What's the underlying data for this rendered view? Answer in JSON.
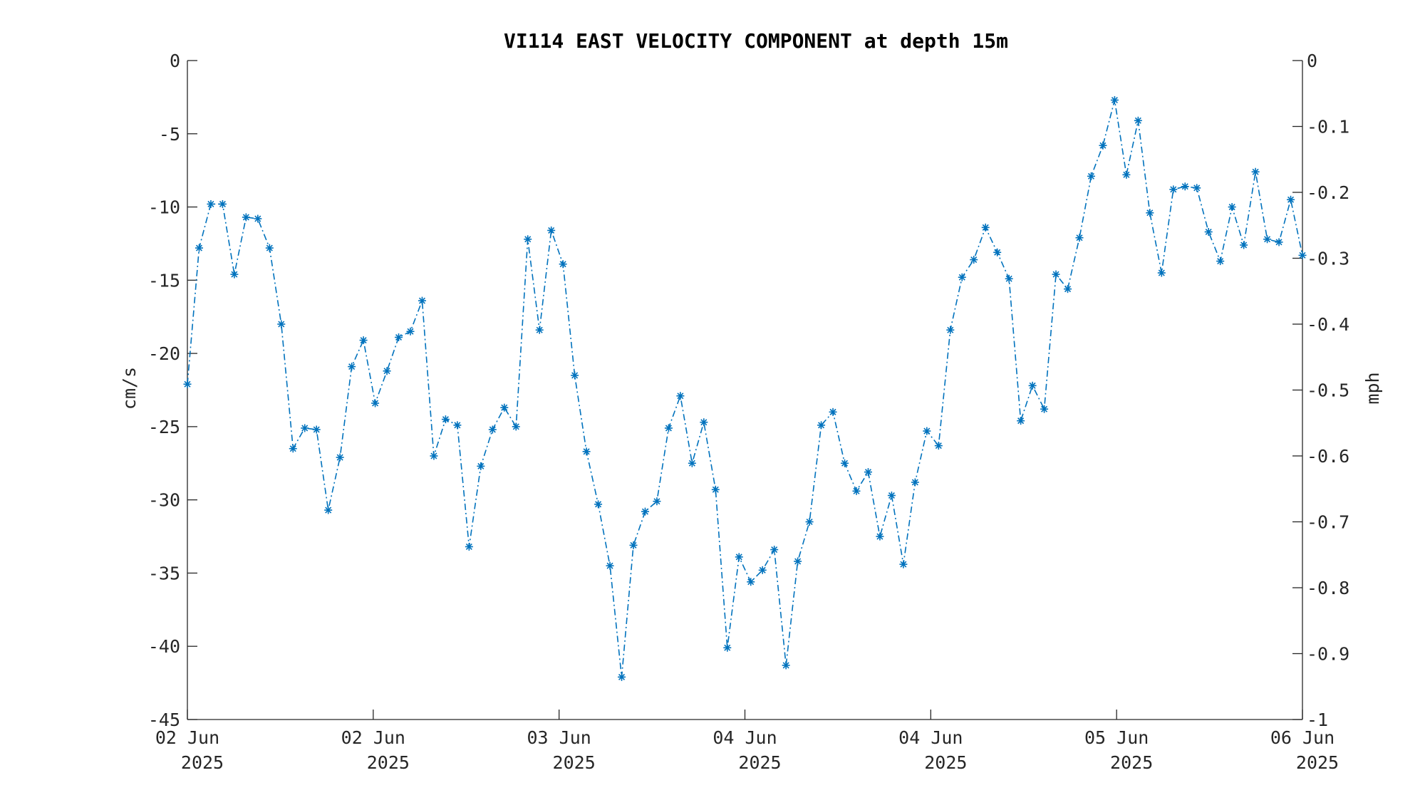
{
  "chart_data": {
    "type": "line",
    "title": "VI114 EAST VELOCITY COMPONENT at depth 15m",
    "ylabel": "cm/s",
    "y2label": "mph",
    "ylim": [
      -45,
      0
    ],
    "y2lim": [
      -1,
      0
    ],
    "yticks": [
      "0",
      "-5",
      "-10",
      "-15",
      "-20",
      "-25",
      "-30",
      "-35",
      "-40",
      "-45"
    ],
    "y2ticks": [
      "0",
      "-0.1",
      "-0.2",
      "-0.3",
      "-0.4",
      "-0.5",
      "-0.6",
      "-0.7",
      "-0.8",
      "-0.9",
      "-1"
    ],
    "xticks": [
      {
        "day": "02 Jun",
        "year": "2025"
      },
      {
        "day": "02 Jun",
        "year": "2025"
      },
      {
        "day": "03 Jun",
        "year": "2025"
      },
      {
        "day": "04 Jun",
        "year": "2025"
      },
      {
        "day": "04 Jun",
        "year": "2025"
      },
      {
        "day": "05 Jun",
        "year": "2025"
      },
      {
        "day": "06 Jun",
        "year": "2025"
      }
    ],
    "x_range_days": 4,
    "marker": "asterisk",
    "line_style": "dash-dot",
    "grid": false,
    "series": [
      {
        "color": "#0072BD",
        "values": [
          -22.1,
          -12.8,
          -9.8,
          -9.8,
          -14.6,
          -10.7,
          -10.8,
          -12.8,
          -18.0,
          -26.5,
          -25.1,
          -25.2,
          -30.7,
          -27.1,
          -20.9,
          -19.1,
          -23.4,
          -21.2,
          -18.9,
          -18.5,
          -16.4,
          -27.0,
          -24.5,
          -24.9,
          -33.2,
          -27.7,
          -25.2,
          -23.7,
          -25.0,
          -12.2,
          -18.4,
          -11.6,
          -13.9,
          -21.5,
          -26.7,
          -30.3,
          -34.5,
          -42.1,
          -33.1,
          -30.8,
          -30.1,
          -25.1,
          -22.9,
          -27.5,
          -24.7,
          -29.3,
          -40.1,
          -33.9,
          -35.6,
          -34.8,
          -33.4,
          -41.3,
          -34.2,
          -31.5,
          -24.9,
          -24.0,
          -27.5,
          -29.4,
          -28.1,
          -32.5,
          -29.7,
          -34.4,
          -28.8,
          -25.3,
          -26.3,
          -18.4,
          -14.8,
          -13.6,
          -11.4,
          -13.1,
          -14.9,
          -24.6,
          -22.2,
          -23.8,
          -14.6,
          -15.6,
          -12.1,
          -7.9,
          -5.8,
          -2.7,
          -7.8,
          -4.1,
          -10.4,
          -14.5,
          -8.8,
          -8.6,
          -8.7,
          -11.7,
          -13.7,
          -10.0,
          -12.6,
          -7.6,
          -12.2,
          -12.4,
          -9.5,
          -13.3
        ]
      }
    ]
  }
}
